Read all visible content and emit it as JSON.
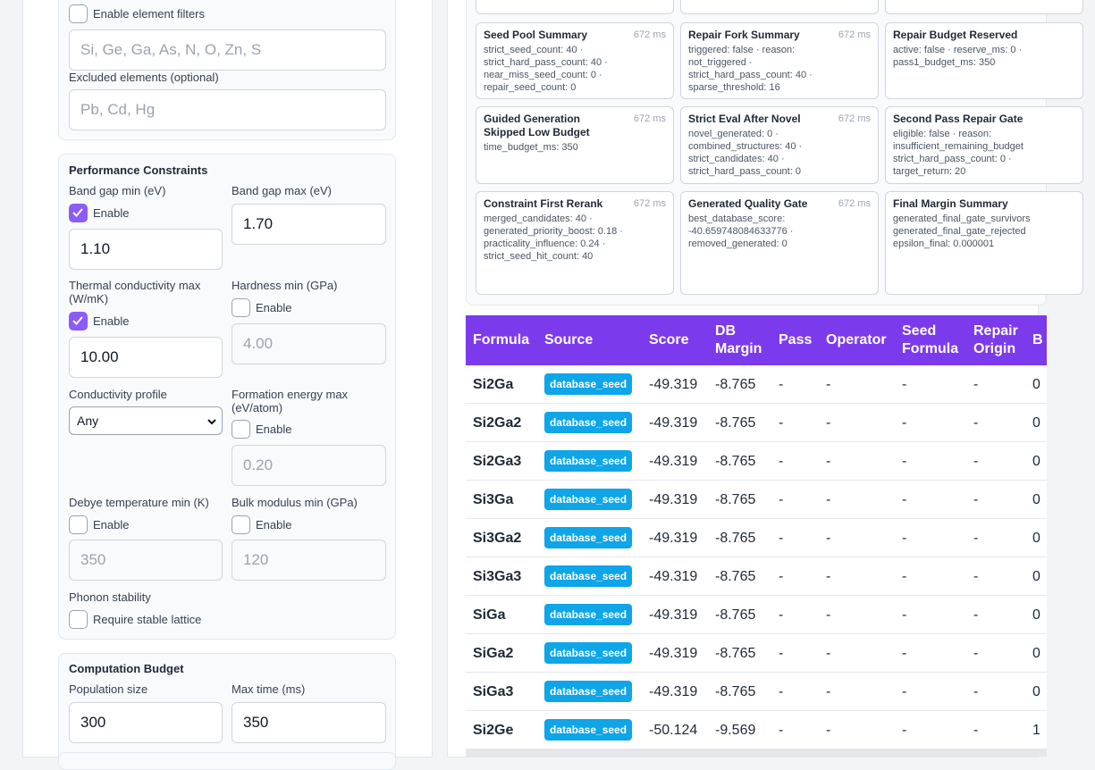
{
  "filters": {
    "enable_label": "Enable element filters",
    "include_placeholder": "Si, Ge, Ga, As, N, O, Zn, S",
    "excluded_label": "Excluded elements (optional)",
    "excluded_placeholder": "Pb, Cd, Hg"
  },
  "performance": {
    "title": "Performance Constraints",
    "fields": [
      {
        "label": "Band gap min (eV)",
        "enable": "Enable",
        "checked": true,
        "value": "1.10"
      },
      {
        "label": "Band gap max (eV)",
        "value": "1.70"
      },
      {
        "label": "Thermal conductivity max (W/mK)",
        "enable": "Enable",
        "checked": true,
        "value": "10.00"
      },
      {
        "label": "Hardness min (GPa)",
        "enable": "Enable",
        "checked": false,
        "value": "4.00"
      },
      {
        "label": "Conductivity profile",
        "value": "Any"
      },
      {
        "label": "Formation energy max (eV/atom)",
        "enable": "Enable",
        "checked": false,
        "value": "0.20"
      },
      {
        "label": "Debye temperature min (K)",
        "enable": "Enable",
        "checked": false,
        "value": "350"
      },
      {
        "label": "Bulk modulus min (GPa)",
        "enable": "Enable",
        "checked": false,
        "value": "120"
      },
      {
        "label": "Phonon stability",
        "enable": "Require stable lattice",
        "checked": false
      }
    ]
  },
  "budget": {
    "title": "Computation Budget",
    "population_label": "Population size",
    "population_value": "300",
    "max_time_label": "Max time (ms)",
    "max_time_value": "350"
  },
  "cards": [
    {
      "title": "Seed Pool Summary",
      "time": "672 ms",
      "lines": [
        "strict_seed_count: 40 ·",
        "strict_hard_pass_count: 40 ·",
        "near_miss_seed_count: 0 ·",
        "repair_seed_count: 0"
      ]
    },
    {
      "title": "Repair Fork Summary",
      "time": "672 ms",
      "lines": [
        "triggered: false · reason:",
        "not_triggered ·",
        "strict_hard_pass_count: 40 ·",
        "sparse_threshold: 16"
      ]
    },
    {
      "title": "Repair Budget Reserved",
      "lines": [
        "active: false · reserve_ms: 0 ·",
        "pass1_budget_ms: 350"
      ]
    },
    {
      "title": "Guided Generation Skipped Low Budget",
      "time": "672 ms",
      "lines": [
        "time_budget_ms: 350"
      ]
    },
    {
      "title": "Strict Eval After Novel",
      "time": "672 ms",
      "lines": [
        "novel_generated: 0 ·",
        "combined_structures: 40 ·",
        "strict_candidates: 40 ·",
        "strict_hard_pass_count: 0"
      ]
    },
    {
      "title": "Second Pass Repair Gate",
      "lines": [
        "eligible: false · reason:",
        "insufficient_remaining_budget",
        "strict_hard_pass_count: 0 ·",
        "target_return: 20"
      ]
    },
    {
      "title": "Constraint First Rerank",
      "time": "672 ms",
      "lines": [
        "merged_candidates: 40 ·",
        "generated_priority_boost: 0.18 ·",
        "practicality_influence: 0.24 ·",
        "strict_seed_hit_count: 40"
      ]
    },
    {
      "title": "Generated Quality Gate",
      "time": "672 ms",
      "lines": [
        "best_database_score:",
        "-40.659748084633776 ·",
        "removed_generated: 0"
      ]
    },
    {
      "title": "Final Margin Summary",
      "lines": [
        "generated_final_gate_survivors",
        "generated_final_gate_rejected",
        "epsilon_final: 0.000001"
      ]
    }
  ],
  "table": {
    "headers": [
      "Formula",
      "Source",
      "Score",
      "DB Margin",
      "Pass",
      "Operator",
      "Seed Formula",
      "Repair Origin",
      "B"
    ],
    "rows": [
      [
        "Si2Ga",
        "database_seed",
        "-49.319",
        "-8.765",
        "-",
        "-",
        "-",
        "-",
        "0"
      ],
      [
        "Si2Ga2",
        "database_seed",
        "-49.319",
        "-8.765",
        "-",
        "-",
        "-",
        "-",
        "0"
      ],
      [
        "Si2Ga3",
        "database_seed",
        "-49.319",
        "-8.765",
        "-",
        "-",
        "-",
        "-",
        "0"
      ],
      [
        "Si3Ga",
        "database_seed",
        "-49.319",
        "-8.765",
        "-",
        "-",
        "-",
        "-",
        "0"
      ],
      [
        "Si3Ga2",
        "database_seed",
        "-49.319",
        "-8.765",
        "-",
        "-",
        "-",
        "-",
        "0"
      ],
      [
        "Si3Ga3",
        "database_seed",
        "-49.319",
        "-8.765",
        "-",
        "-",
        "-",
        "-",
        "0"
      ],
      [
        "SiGa",
        "database_seed",
        "-49.319",
        "-8.765",
        "-",
        "-",
        "-",
        "-",
        "0"
      ],
      [
        "SiGa2",
        "database_seed",
        "-49.319",
        "-8.765",
        "-",
        "-",
        "-",
        "-",
        "0"
      ],
      [
        "SiGa3",
        "database_seed",
        "-49.319",
        "-8.765",
        "-",
        "-",
        "-",
        "-",
        "0"
      ],
      [
        "Si2Ge",
        "database_seed",
        "-50.124",
        "-9.569",
        "-",
        "-",
        "-",
        "-",
        "1"
      ]
    ]
  }
}
